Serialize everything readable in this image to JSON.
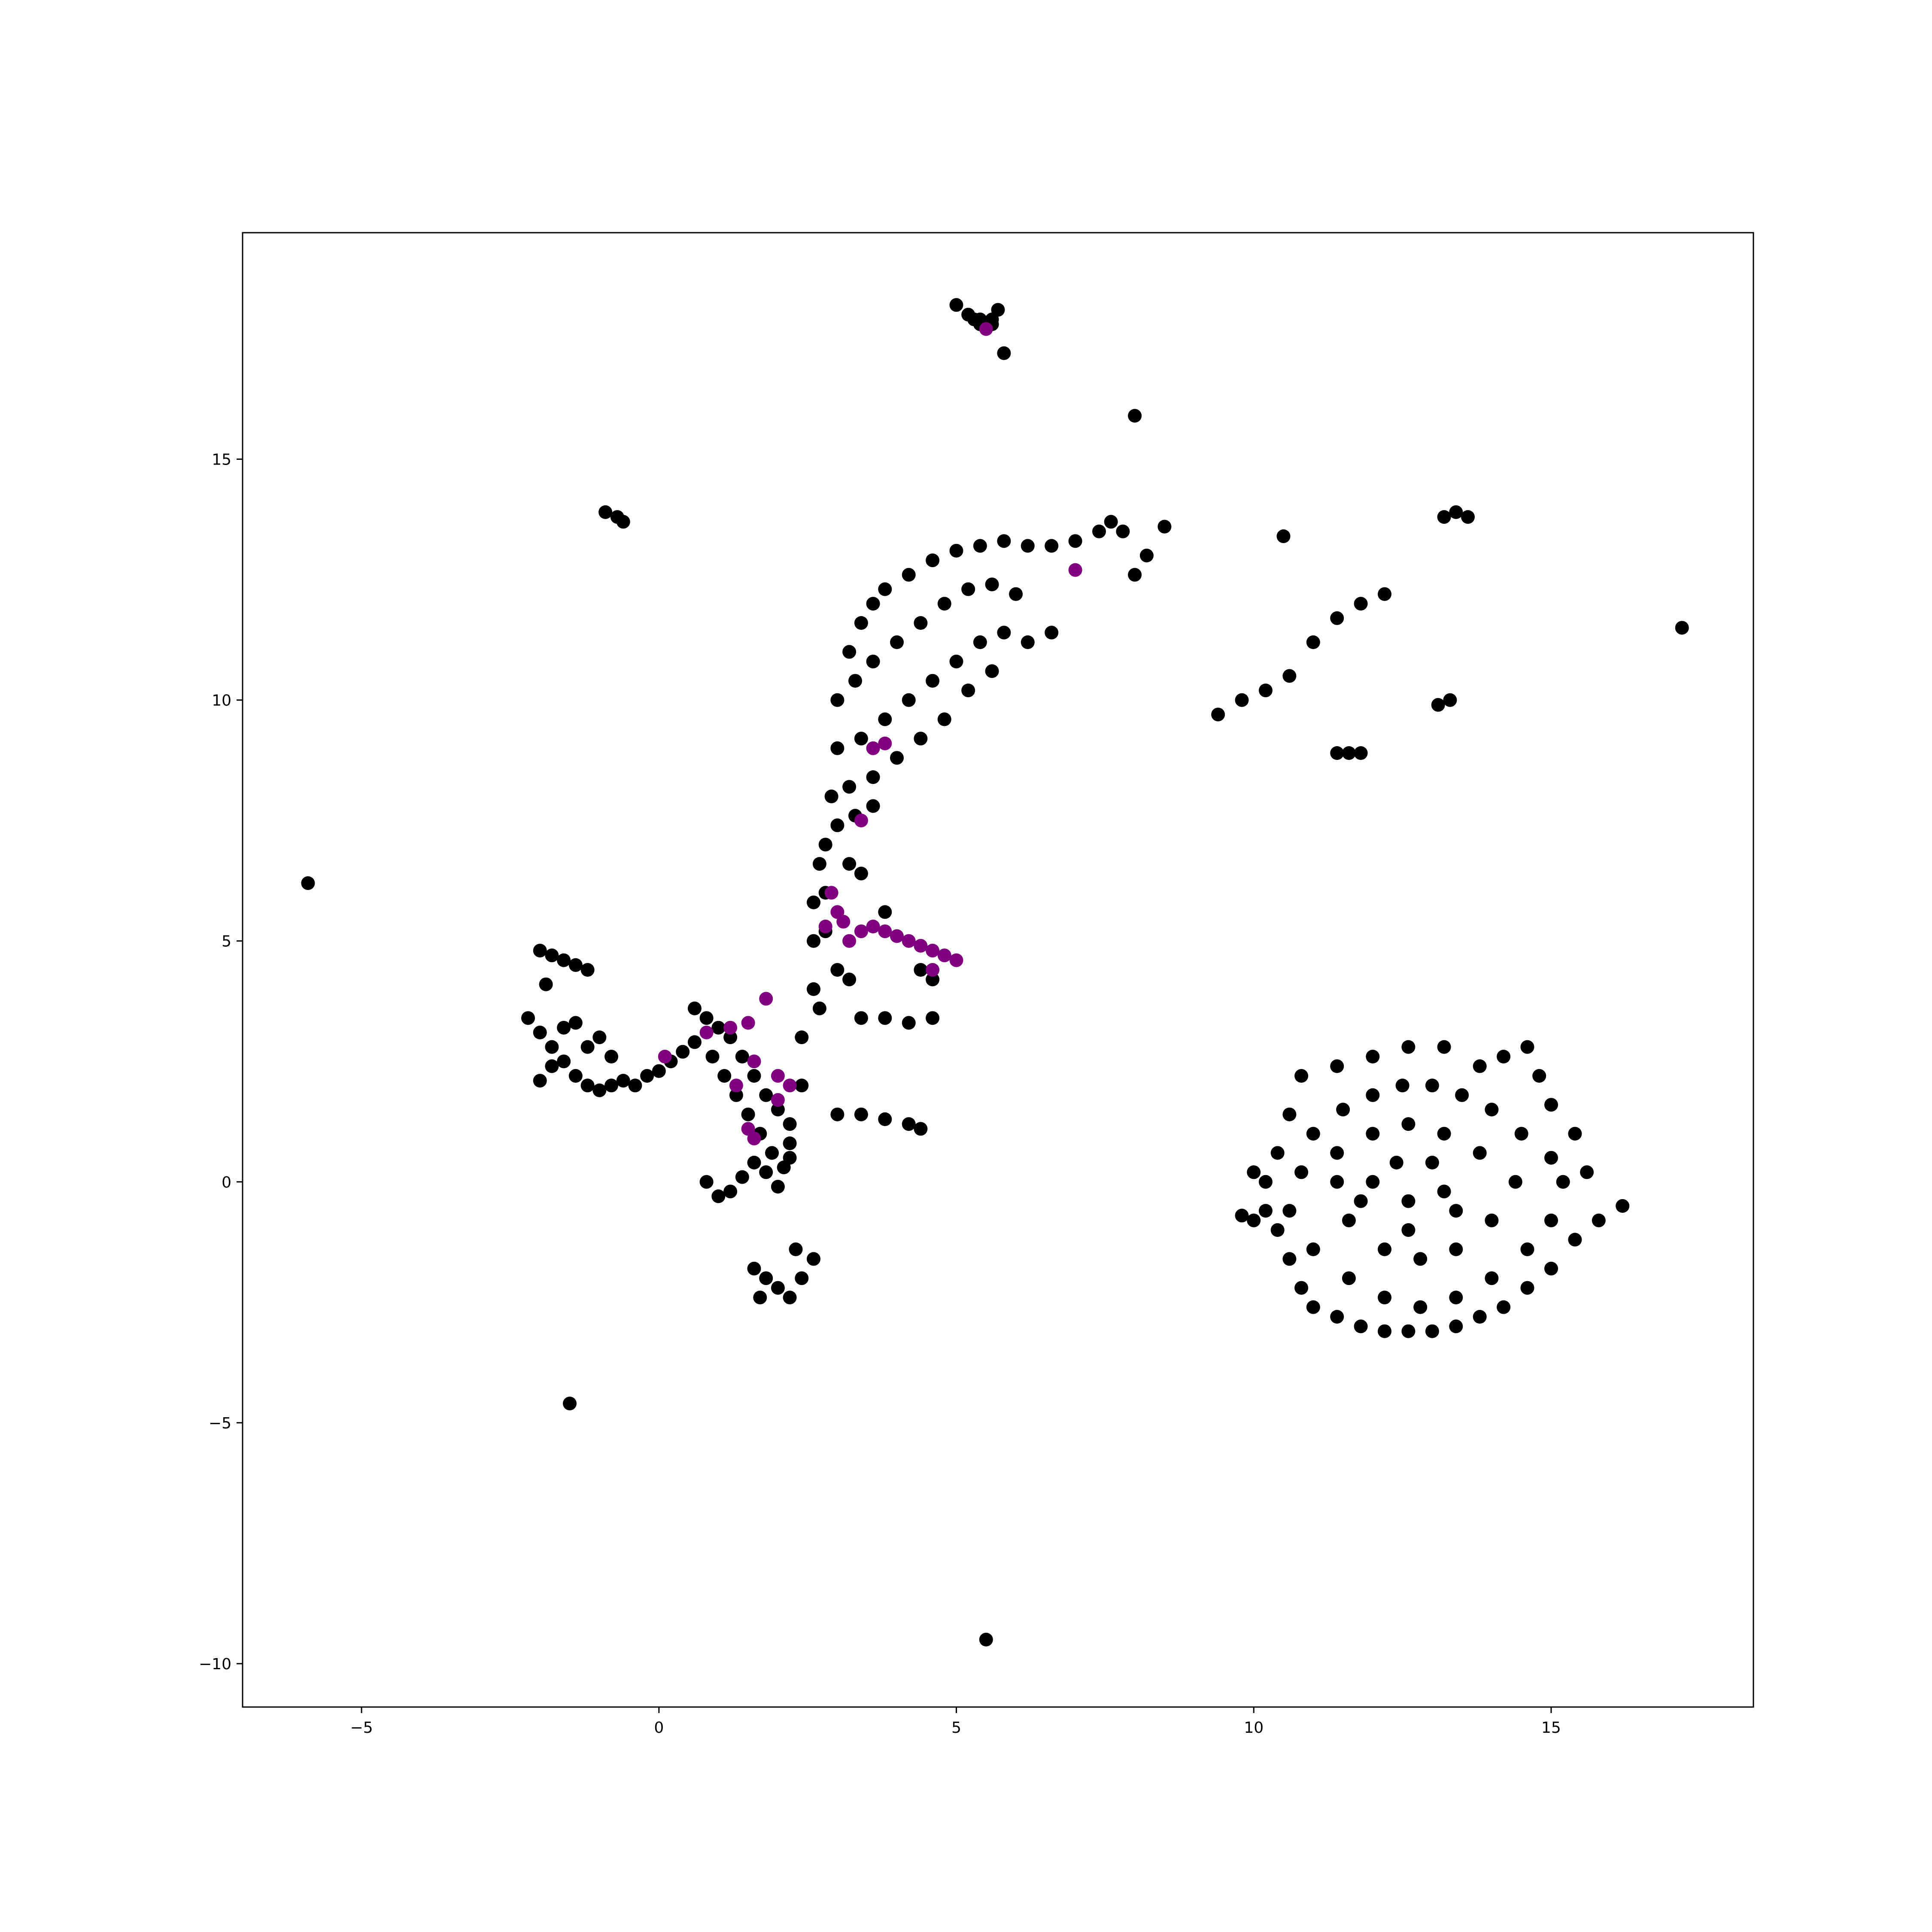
{
  "chart_data": {
    "type": "scatter",
    "title": "",
    "xlabel": "",
    "ylabel": "",
    "xlim": [
      -7.0,
      18.4
    ],
    "ylim": [
      -10.9,
      19.7
    ],
    "xticks": [
      -5,
      0,
      5,
      10,
      15
    ],
    "yticks": [
      -10,
      -5,
      0,
      5,
      10,
      15
    ],
    "xtick_labels": [
      "−5",
      "0",
      "5",
      "10",
      "15"
    ],
    "ytick_labels": [
      "−10",
      "−5",
      "0",
      "5",
      "10",
      "15"
    ],
    "grid": false,
    "legend": "none",
    "colors": {
      "background": "#000000",
      "highlight": "#800080"
    },
    "series": [
      {
        "color": "#000000",
        "points": [
          [
            5.8,
            17.2
          ],
          [
            5.4,
            17.8
          ],
          [
            5.6,
            17.8
          ],
          [
            5.0,
            18.2
          ],
          [
            5.2,
            18.0
          ],
          [
            5.4,
            17.9
          ],
          [
            5.6,
            17.9
          ],
          [
            5.7,
            18.1
          ],
          [
            5.3,
            17.9
          ],
          [
            8.0,
            15.9
          ],
          [
            -0.9,
            13.9
          ],
          [
            -0.7,
            13.8
          ],
          [
            -0.6,
            13.7
          ],
          [
            -5.9,
            6.2
          ],
          [
            -1.5,
            -4.6
          ],
          [
            5.5,
            -9.5
          ],
          [
            10.5,
            13.4
          ],
          [
            17.2,
            11.5
          ],
          [
            13.4,
            13.9
          ],
          [
            13.2,
            13.8
          ],
          [
            13.6,
            13.8
          ],
          [
            13.3,
            10.0
          ],
          [
            13.1,
            9.9
          ],
          [
            11.8,
            8.9
          ],
          [
            11.6,
            8.9
          ],
          [
            11.4,
            8.9
          ],
          [
            9.4,
            9.7
          ],
          [
            9.8,
            10.0
          ],
          [
            10.2,
            10.2
          ],
          [
            10.6,
            10.5
          ],
          [
            11.0,
            11.2
          ],
          [
            11.4,
            11.7
          ],
          [
            11.8,
            12.0
          ],
          [
            12.2,
            12.2
          ],
          [
            -2.2,
            3.4
          ],
          [
            -2.0,
            3.1
          ],
          [
            -1.8,
            2.8
          ],
          [
            -1.6,
            2.5
          ],
          [
            -1.4,
            2.2
          ],
          [
            -1.2,
            2.0
          ],
          [
            -1.0,
            1.9
          ],
          [
            -0.8,
            2.0
          ],
          [
            -0.6,
            2.1
          ],
          [
            -0.4,
            2.0
          ],
          [
            -0.2,
            2.2
          ],
          [
            0.0,
            2.3
          ],
          [
            0.2,
            2.5
          ],
          [
            0.4,
            2.7
          ],
          [
            0.6,
            2.9
          ],
          [
            -2.0,
            2.1
          ],
          [
            -1.8,
            2.4
          ],
          [
            -1.6,
            3.2
          ],
          [
            -1.4,
            3.3
          ],
          [
            -1.2,
            2.8
          ],
          [
            -1.0,
            3.0
          ],
          [
            -0.8,
            2.6
          ],
          [
            -2.0,
            4.8
          ],
          [
            -1.8,
            4.7
          ],
          [
            -1.6,
            4.6
          ],
          [
            -1.4,
            4.5
          ],
          [
            -1.2,
            4.4
          ],
          [
            -1.9,
            4.1
          ],
          [
            0.8,
            3.4
          ],
          [
            1.0,
            3.2
          ],
          [
            1.2,
            3.0
          ],
          [
            1.4,
            2.6
          ],
          [
            1.6,
            2.2
          ],
          [
            1.8,
            1.8
          ],
          [
            2.0,
            1.5
          ],
          [
            2.2,
            1.2
          ],
          [
            0.9,
            2.6
          ],
          [
            1.1,
            2.2
          ],
          [
            1.3,
            1.8
          ],
          [
            1.5,
            1.4
          ],
          [
            1.7,
            1.0
          ],
          [
            1.9,
            0.6
          ],
          [
            2.1,
            0.3
          ],
          [
            2.2,
            0.8
          ],
          [
            0.8,
            0.0
          ],
          [
            1.0,
            -0.3
          ],
          [
            1.2,
            -0.2
          ],
          [
            1.4,
            0.1
          ],
          [
            1.6,
            0.4
          ],
          [
            1.8,
            0.2
          ],
          [
            2.0,
            -0.1
          ],
          [
            2.2,
            0.5
          ],
          [
            1.6,
            -1.8
          ],
          [
            1.8,
            -2.0
          ],
          [
            2.0,
            -2.2
          ],
          [
            2.2,
            -2.4
          ],
          [
            2.4,
            -2.0
          ],
          [
            2.6,
            -1.6
          ],
          [
            1.7,
            -2.4
          ],
          [
            2.3,
            -1.4
          ],
          [
            2.4,
            2.0
          ],
          [
            2.4,
            3.0
          ],
          [
            2.6,
            4.0
          ],
          [
            2.6,
            5.0
          ],
          [
            2.8,
            6.0
          ],
          [
            2.8,
            7.0
          ],
          [
            2.9,
            8.0
          ],
          [
            3.0,
            9.0
          ],
          [
            3.0,
            10.0
          ],
          [
            3.2,
            11.0
          ],
          [
            3.4,
            11.6
          ],
          [
            3.6,
            12.0
          ],
          [
            3.8,
            12.3
          ],
          [
            4.2,
            12.6
          ],
          [
            4.6,
            12.9
          ],
          [
            5.0,
            13.1
          ],
          [
            5.4,
            13.2
          ],
          [
            5.8,
            13.3
          ],
          [
            6.2,
            13.2
          ],
          [
            6.6,
            13.2
          ],
          [
            7.0,
            13.3
          ],
          [
            7.4,
            13.5
          ],
          [
            7.6,
            13.7
          ],
          [
            7.8,
            13.5
          ],
          [
            8.2,
            13.0
          ],
          [
            8.5,
            13.6
          ],
          [
            8.0,
            12.6
          ],
          [
            3.3,
            10.4
          ],
          [
            3.6,
            10.8
          ],
          [
            4.0,
            11.2
          ],
          [
            4.4,
            11.6
          ],
          [
            4.8,
            12.0
          ],
          [
            5.2,
            12.3
          ],
          [
            5.6,
            12.4
          ],
          [
            6.0,
            12.2
          ],
          [
            3.4,
            9.2
          ],
          [
            3.8,
            9.6
          ],
          [
            4.2,
            10.0
          ],
          [
            4.6,
            10.4
          ],
          [
            5.0,
            10.8
          ],
          [
            5.4,
            11.2
          ],
          [
            5.8,
            11.4
          ],
          [
            6.2,
            11.2
          ],
          [
            3.2,
            8.2
          ],
          [
            3.6,
            8.4
          ],
          [
            4.0,
            8.8
          ],
          [
            4.4,
            9.2
          ],
          [
            4.8,
            9.6
          ],
          [
            5.2,
            10.2
          ],
          [
            5.6,
            10.6
          ],
          [
            6.6,
            11.4
          ],
          [
            3.0,
            7.4
          ],
          [
            3.3,
            7.6
          ],
          [
            3.6,
            7.8
          ],
          [
            3.2,
            6.6
          ],
          [
            3.4,
            6.4
          ],
          [
            2.7,
            6.6
          ],
          [
            2.6,
            5.8
          ],
          [
            2.8,
            5.2
          ],
          [
            3.0,
            4.4
          ],
          [
            3.2,
            4.2
          ],
          [
            2.7,
            3.6
          ],
          [
            3.4,
            3.4
          ],
          [
            3.8,
            3.4
          ],
          [
            4.2,
            3.3
          ],
          [
            4.6,
            3.4
          ],
          [
            3.8,
            5.6
          ],
          [
            4.4,
            4.4
          ],
          [
            4.6,
            4.2
          ],
          [
            3.0,
            1.4
          ],
          [
            3.4,
            1.4
          ],
          [
            3.8,
            1.3
          ],
          [
            4.2,
            1.2
          ],
          [
            4.4,
            1.1
          ],
          [
            0.6,
            3.6
          ],
          [
            10.0,
            0.2
          ],
          [
            10.2,
            -0.6
          ],
          [
            10.4,
            -1.0
          ],
          [
            10.6,
            -1.6
          ],
          [
            10.8,
            -2.2
          ],
          [
            11.0,
            -2.6
          ],
          [
            11.4,
            -2.8
          ],
          [
            11.8,
            -3.0
          ],
          [
            12.2,
            -3.1
          ],
          [
            12.6,
            -3.1
          ],
          [
            13.0,
            -3.1
          ],
          [
            13.4,
            -3.0
          ],
          [
            13.8,
            -2.8
          ],
          [
            14.2,
            -2.6
          ],
          [
            14.6,
            -2.2
          ],
          [
            15.0,
            -1.8
          ],
          [
            15.4,
            -1.2
          ],
          [
            15.8,
            -0.8
          ],
          [
            16.2,
            -0.5
          ],
          [
            15.6,
            0.2
          ],
          [
            15.4,
            1.0
          ],
          [
            15.0,
            1.6
          ],
          [
            14.8,
            2.2
          ],
          [
            14.6,
            2.8
          ],
          [
            14.2,
            2.6
          ],
          [
            13.8,
            2.4
          ],
          [
            13.2,
            2.8
          ],
          [
            12.6,
            2.8
          ],
          [
            12.0,
            2.6
          ],
          [
            11.4,
            2.4
          ],
          [
            10.8,
            2.2
          ],
          [
            10.6,
            1.4
          ],
          [
            10.4,
            0.6
          ],
          [
            10.2,
            0.0
          ],
          [
            9.8,
            -0.7
          ],
          [
            10.0,
            -0.8
          ],
          [
            11.0,
            1.0
          ],
          [
            11.5,
            1.5
          ],
          [
            12.0,
            1.8
          ],
          [
            12.5,
            2.0
          ],
          [
            13.0,
            2.0
          ],
          [
            13.5,
            1.8
          ],
          [
            14.0,
            1.5
          ],
          [
            14.5,
            1.0
          ],
          [
            15.0,
            0.5
          ],
          [
            15.2,
            0.0
          ],
          [
            15.0,
            -0.8
          ],
          [
            14.6,
            -1.4
          ],
          [
            14.0,
            -2.0
          ],
          [
            13.4,
            -2.4
          ],
          [
            12.8,
            -2.6
          ],
          [
            12.2,
            -2.4
          ],
          [
            11.6,
            -2.0
          ],
          [
            11.0,
            -1.4
          ],
          [
            10.6,
            -0.6
          ],
          [
            10.8,
            0.2
          ],
          [
            11.4,
            0.6
          ],
          [
            12.0,
            1.0
          ],
          [
            12.6,
            1.2
          ],
          [
            13.2,
            1.0
          ],
          [
            13.8,
            0.6
          ],
          [
            14.4,
            0.0
          ],
          [
            14.0,
            -0.8
          ],
          [
            13.4,
            -1.4
          ],
          [
            12.8,
            -1.6
          ],
          [
            12.2,
            -1.4
          ],
          [
            11.6,
            -0.8
          ],
          [
            11.4,
            0.0
          ],
          [
            12.0,
            0.0
          ],
          [
            12.6,
            -0.4
          ],
          [
            13.2,
            -0.2
          ],
          [
            13.0,
            0.4
          ],
          [
            12.4,
            0.4
          ],
          [
            11.8,
            -0.4
          ],
          [
            12.6,
            -1.0
          ],
          [
            13.4,
            -0.6
          ]
        ]
      },
      {
        "color": "#800080",
        "points": [
          [
            5.5,
            17.7
          ],
          [
            7.0,
            12.7
          ],
          [
            3.6,
            9.0
          ],
          [
            3.8,
            9.1
          ],
          [
            3.4,
            7.5
          ],
          [
            2.9,
            6.0
          ],
          [
            3.0,
            5.6
          ],
          [
            3.1,
            5.4
          ],
          [
            2.8,
            5.3
          ],
          [
            3.2,
            5.0
          ],
          [
            3.4,
            5.2
          ],
          [
            3.6,
            5.3
          ],
          [
            3.8,
            5.2
          ],
          [
            4.0,
            5.1
          ],
          [
            4.2,
            5.0
          ],
          [
            4.4,
            4.9
          ],
          [
            4.6,
            4.8
          ],
          [
            4.8,
            4.7
          ],
          [
            5.0,
            4.6
          ],
          [
            4.6,
            4.4
          ],
          [
            1.8,
            3.8
          ],
          [
            1.5,
            3.3
          ],
          [
            1.2,
            3.2
          ],
          [
            0.8,
            3.1
          ],
          [
            0.1,
            2.6
          ],
          [
            1.6,
            2.5
          ],
          [
            2.0,
            2.2
          ],
          [
            2.2,
            2.0
          ],
          [
            1.3,
            2.0
          ],
          [
            2.0,
            1.7
          ],
          [
            1.5,
            1.1
          ],
          [
            1.6,
            0.9
          ]
        ]
      }
    ]
  }
}
